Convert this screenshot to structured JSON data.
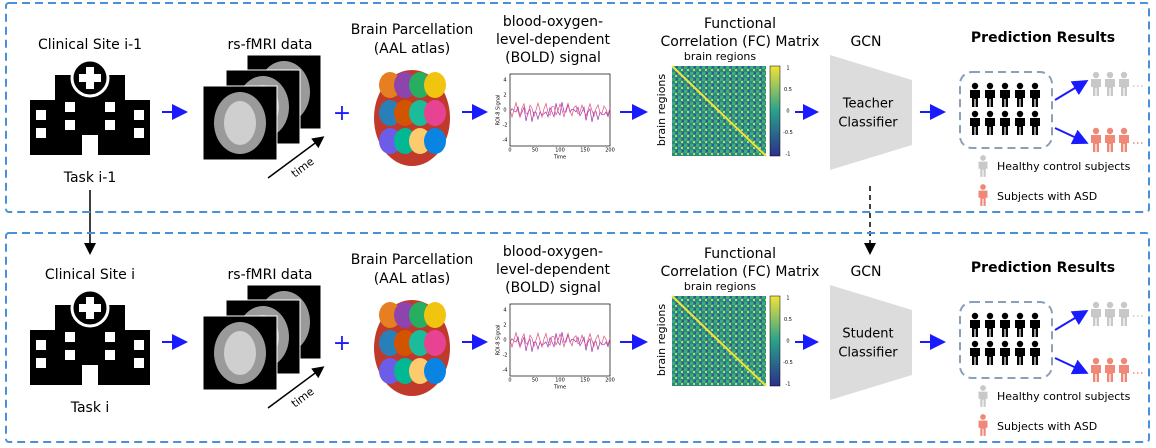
{
  "rows": [
    {
      "site": "Clinical Site i-1",
      "task": "Task i-1",
      "classifier": [
        "Teacher",
        "Classifier"
      ]
    },
    {
      "site": "Clinical Site i",
      "task": "Task i",
      "classifier": [
        "Student",
        "Classifier"
      ]
    }
  ],
  "labels": {
    "fmri": "rs-fMRI data",
    "time": "time",
    "plus": "+",
    "parcellation": [
      "Brain Parcellation",
      "(AAL atlas)"
    ],
    "bold": [
      "blood-oxygen-",
      "level-dependent",
      "(BOLD) signal"
    ],
    "fc": [
      "Functional",
      "Correlation (FC) Matrix"
    ],
    "brain_regions": "brain regions",
    "gcn": "GCN",
    "prediction": "Prediction Results",
    "healthy": "Healthy control subjects",
    "asd": "Subjects with ASD"
  },
  "bold_plot": {
    "ylabel": "ROI-8 Signal",
    "xlabel": "Time",
    "xticks": [
      "0",
      "50",
      "100",
      "150",
      "200"
    ],
    "yticks": [
      "4",
      "2",
      "0",
      "-2",
      "-4"
    ]
  },
  "colorbar": {
    "ticks": [
      "1",
      "0.5",
      "0",
      "-0.5",
      "-1"
    ]
  }
}
